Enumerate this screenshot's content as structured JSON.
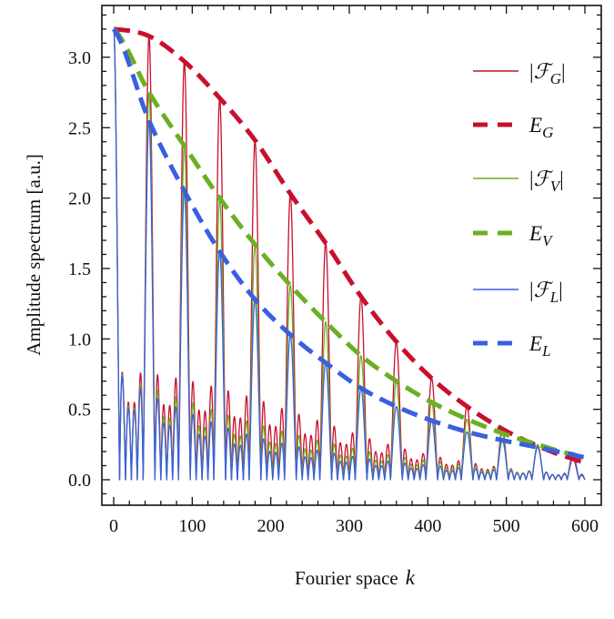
{
  "chart_data": {
    "type": "line",
    "xlabel": "Fourier space",
    "xlabel_var": "k",
    "ylabel": "Amplitude spectrum [a.u.]",
    "xlim": [
      -15,
      620
    ],
    "ylim": [
      -0.19,
      3.4
    ],
    "xticks": [
      "0",
      "100",
      "200",
      "300",
      "400",
      "500",
      "600"
    ],
    "xtick_values": [
      0,
      100,
      200,
      300,
      400,
      500,
      600
    ],
    "yticks": [
      "0.0",
      "0.5",
      "1.0",
      "1.5",
      "2.0",
      "2.5",
      "3.0"
    ],
    "ytick_values": [
      0,
      0.5,
      1.0,
      1.5,
      2.0,
      2.5,
      3.0
    ],
    "grid": false,
    "legend_position": "top-right",
    "peak_spacing": 45,
    "envelope_k": [
      0,
      45,
      90,
      135,
      180,
      225,
      270,
      315,
      360,
      405,
      450,
      495,
      540,
      585,
      600
    ],
    "series": [
      {
        "key": "FG",
        "prefix": "|",
        "sym": "ℱ",
        "sub": "G",
        "suffix": "|",
        "style": "solid",
        "color": "#c8102e",
        "envelope": "EG"
      },
      {
        "key": "EG",
        "prefix": "",
        "sym": "E",
        "sub": "G",
        "suffix": "",
        "style": "dashed",
        "color": "#c8102e",
        "values": [
          3.2,
          3.15,
          2.97,
          2.71,
          2.41,
          2.03,
          1.68,
          1.3,
          0.98,
          0.72,
          0.52,
          0.36,
          0.24,
          0.15,
          0.13
        ]
      },
      {
        "key": "FV",
        "prefix": "|",
        "sym": "ℱ",
        "sub": "V",
        "suffix": "|",
        "style": "solid",
        "color": "#6ab023",
        "envelope": "EV"
      },
      {
        "key": "EV",
        "prefix": "",
        "sym": "E",
        "sub": "V",
        "suffix": "",
        "style": "dashed",
        "color": "#6ab023",
        "values": [
          3.2,
          2.75,
          2.37,
          2.0,
          1.67,
          1.38,
          1.12,
          0.88,
          0.7,
          0.55,
          0.43,
          0.33,
          0.25,
          0.18,
          0.16
        ]
      },
      {
        "key": "FL",
        "prefix": "|",
        "sym": "ℱ",
        "sub": "L",
        "suffix": "|",
        "style": "solid",
        "color": "#3a5fe0",
        "envelope": "EL"
      },
      {
        "key": "EL",
        "prefix": "",
        "sym": "E",
        "sub": "L",
        "suffix": "",
        "style": "dashed",
        "color": "#3a5fe0",
        "values": [
          3.2,
          2.55,
          2.05,
          1.62,
          1.28,
          1.03,
          0.83,
          0.65,
          0.52,
          0.42,
          0.34,
          0.28,
          0.23,
          0.18,
          0.16
        ]
      }
    ]
  }
}
